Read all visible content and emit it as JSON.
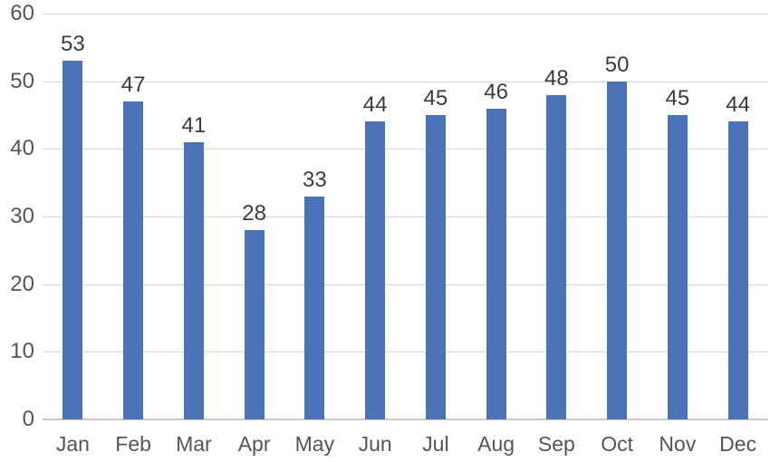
{
  "chart_data": {
    "type": "bar",
    "title": "",
    "xlabel": "",
    "ylabel": "",
    "categories": [
      "Jan",
      "Feb",
      "Mar",
      "Apr",
      "May",
      "Jun",
      "Jul",
      "Aug",
      "Sep",
      "Oct",
      "Nov",
      "Dec"
    ],
    "values": [
      53,
      47,
      41,
      28,
      33,
      44,
      45,
      46,
      48,
      50,
      45,
      44
    ],
    "data_labels": [
      "53",
      "47",
      "41",
      "28",
      "33",
      "44",
      "45",
      "46",
      "48",
      "50",
      "45",
      "44"
    ],
    "ylim": [
      0,
      60
    ],
    "yticks": [
      "0",
      "10",
      "20",
      "30",
      "40",
      "50",
      "60"
    ],
    "ytick_interval": 10,
    "grid": true,
    "legend": false,
    "colors": {
      "bar": "#4c73b8",
      "gridline": "#d9d9d9",
      "axis_line": "#c9c9c9",
      "data_label": "#3b3b3b",
      "tick_label": "#555555",
      "background": "#ffffff"
    }
  }
}
